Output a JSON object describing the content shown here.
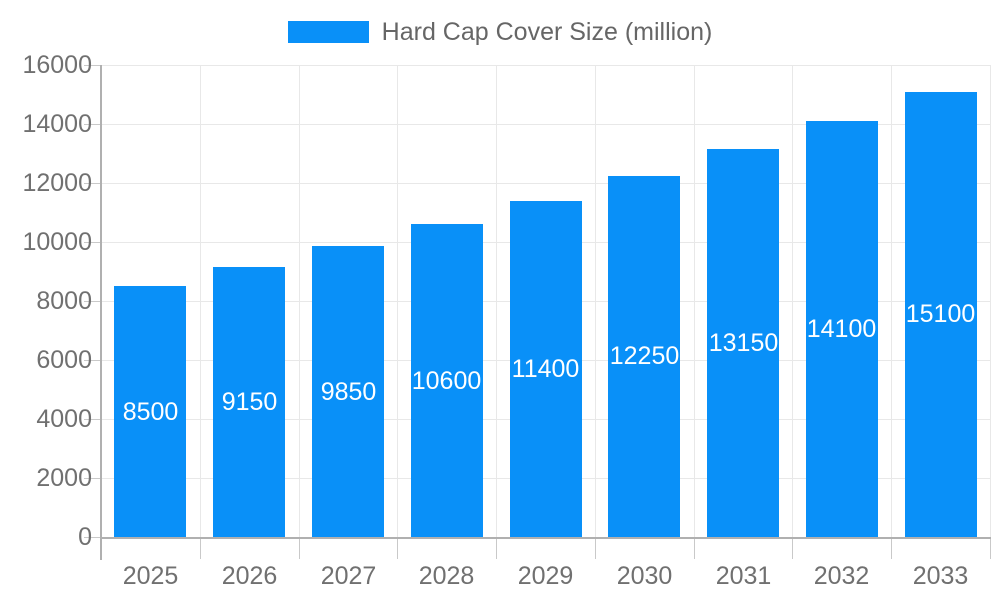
{
  "legend": {
    "label": "Hard Cap Cover Size (million)"
  },
  "chart_data": {
    "type": "bar",
    "title": "",
    "categories": [
      "2025",
      "2026",
      "2027",
      "2028",
      "2029",
      "2030",
      "2031",
      "2032",
      "2033"
    ],
    "series": [
      {
        "name": "Hard Cap Cover Size (million)",
        "values": [
          8500,
          9150,
          9850,
          10600,
          11400,
          12250,
          13150,
          14100,
          15100
        ]
      }
    ],
    "bar_value_labels": [
      "8500",
      "9150",
      "9850",
      "10600",
      "11400",
      "12250",
      "13150",
      "14100",
      "15100"
    ],
    "xlabel": "",
    "ylabel": "",
    "ylim": [
      0,
      16000
    ],
    "ytick_step": 2000,
    "ytick_labels": [
      "0",
      "2000",
      "4000",
      "6000",
      "8000",
      "10000",
      "12000",
      "14000",
      "16000"
    ],
    "grid": true,
    "legend_position": "top-center"
  },
  "colors": {
    "bar": "#0990f8",
    "bar_label_text": "#ffffff",
    "grid_line": "#e8e8e8",
    "axis_line": "#b0b0b0",
    "tick_line": "#c9c9c9",
    "axis_label_text": "#707070",
    "legend_text": "#666666",
    "background": "#ffffff"
  }
}
